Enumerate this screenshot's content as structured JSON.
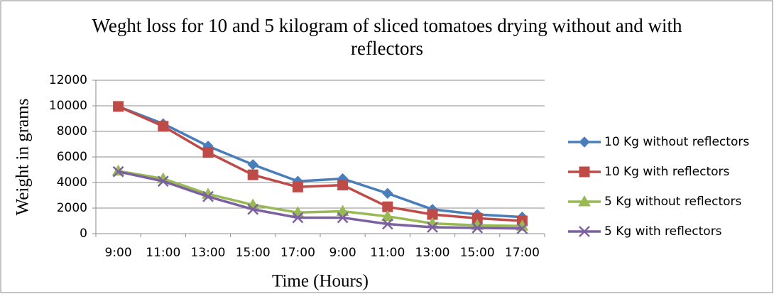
{
  "chart_data": {
    "type": "line",
    "title": "Weght loss for 10 and 5 kilogram of sliced tomatoes drying without and with reflectors",
    "x_label": "Time (Hours)",
    "y_label": "Weight in grams",
    "categories": [
      "9:00",
      "11:00",
      "13:00",
      "15:00",
      "17:00",
      "9:00",
      "11:00",
      "13:00",
      "15:00",
      "17:00"
    ],
    "series": [
      {
        "name": "10 Kg without reflectors",
        "color": "#4a7ebb",
        "marker": "diamond",
        "values": [
          9950,
          8600,
          6850,
          5400,
          4100,
          4300,
          3150,
          1900,
          1500,
          1300
        ]
      },
      {
        "name": "10 Kg with reflectors",
        "color": "#be4b48",
        "marker": "square",
        "values": [
          9950,
          8400,
          6350,
          4600,
          3650,
          3800,
          2100,
          1500,
          1200,
          1000
        ]
      },
      {
        "name": "5 Kg without reflectors",
        "color": "#98b954",
        "marker": "triangle",
        "values": [
          4900,
          4300,
          3100,
          2250,
          1650,
          1750,
          1350,
          800,
          650,
          600
        ]
      },
      {
        "name": "5 Kg with reflectors",
        "color": "#7d60a0",
        "marker": "x",
        "values": [
          4850,
          4100,
          2900,
          1900,
          1250,
          1250,
          750,
          500,
          450,
          400
        ]
      }
    ],
    "ylim": [
      0,
      12000
    ],
    "yticks": [
      0,
      2000,
      4000,
      6000,
      8000,
      10000,
      12000
    ],
    "grid": true,
    "legend": "right"
  }
}
